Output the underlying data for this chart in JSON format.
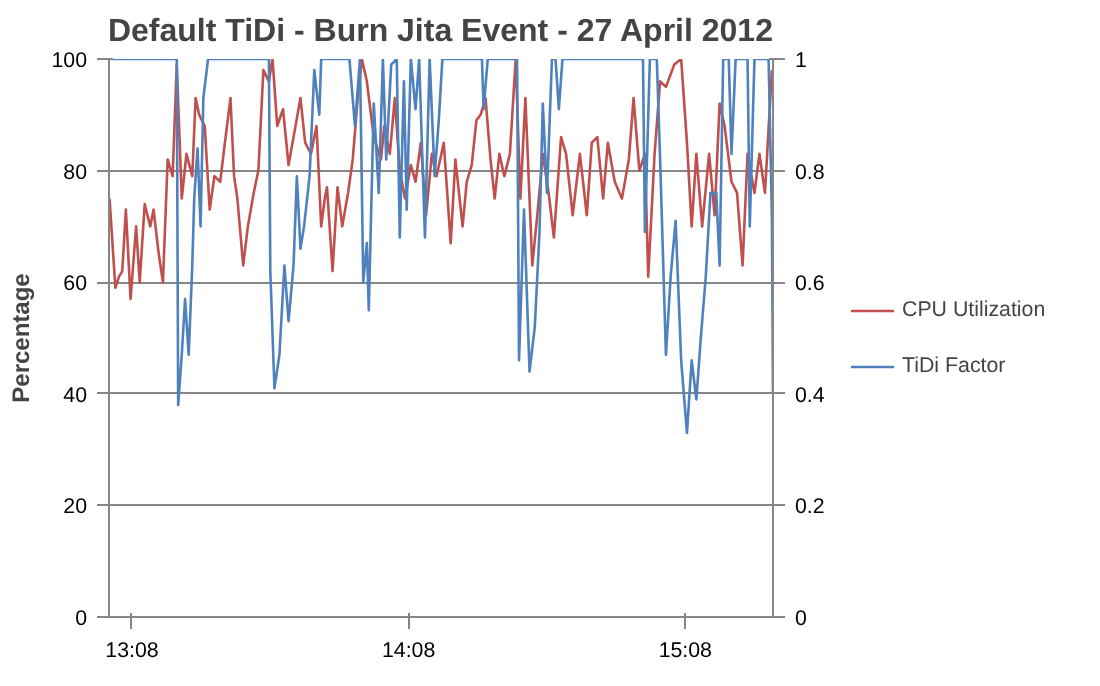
{
  "chart_data": {
    "type": "line",
    "title": "Default TiDi - Burn Jita Event - 27 April 2012",
    "ylabel": "Percentage",
    "xlim": [
      13.05,
      15.45
    ],
    "xticks": [
      {
        "value": 13.133,
        "label": "13:08"
      },
      {
        "value": 14.133,
        "label": "14:08"
      },
      {
        "value": 15.133,
        "label": "15:08"
      }
    ],
    "ylim": [
      0,
      100
    ],
    "yticks": [
      0,
      20,
      40,
      60,
      80,
      100
    ],
    "y2lim": [
      0,
      1
    ],
    "y2ticks": [
      0,
      0.2,
      0.4,
      0.6,
      0.8,
      1
    ],
    "grid": "y",
    "legend": "right",
    "line_style": "solid",
    "marker": "none",
    "series": [
      {
        "name": "CPU Utilization",
        "color": "#c0504d",
        "x": [
          13.052,
          13.073,
          13.086,
          13.098,
          13.111,
          13.128,
          13.148,
          13.161,
          13.179,
          13.199,
          13.211,
          13.23,
          13.245,
          13.262,
          13.28,
          13.295,
          13.313,
          13.33,
          13.351,
          13.363,
          13.376,
          13.396,
          13.414,
          13.431,
          13.452,
          13.464,
          13.489,
          13.502,
          13.514,
          13.535,
          13.552,
          13.573,
          13.59,
          13.608,
          13.628,
          13.641,
          13.658,
          13.679,
          13.699,
          13.717,
          13.742,
          13.759,
          13.78,
          13.8,
          13.817,
          13.83,
          13.838,
          13.858,
          13.876,
          13.893,
          13.914,
          13.931,
          13.949,
          13.964,
          13.982,
          14.007,
          14.033,
          14.045,
          14.065,
          14.083,
          14.101,
          14.12,
          14.141,
          14.158,
          14.177,
          14.196,
          14.217,
          14.234,
          14.26,
          14.285,
          14.302,
          14.328,
          14.343,
          14.361,
          14.378,
          14.393,
          14.411,
          14.429,
          14.444,
          14.461,
          14.479,
          14.499,
          14.52,
          14.537,
          14.555,
          14.58,
          14.6,
          14.618,
          14.639,
          14.658,
          14.684,
          14.702,
          14.726,
          14.752,
          14.777,
          14.795,
          14.815,
          14.836,
          14.853,
          14.878,
          14.904,
          14.929,
          14.946,
          14.967,
          14.987,
          14.999,
          15.022,
          15.042,
          15.063,
          15.093,
          15.118,
          15.139,
          15.156,
          15.173,
          15.194,
          15.219,
          15.239,
          15.257,
          15.275,
          15.3,
          15.32,
          15.34,
          15.358,
          15.383,
          15.401,
          15.421,
          15.446
        ],
        "values": [
          75,
          59,
          61,
          62,
          73,
          57,
          70,
          60,
          74,
          70,
          73,
          65,
          60,
          82,
          79,
          99,
          75,
          83,
          79,
          93,
          90,
          88,
          73,
          79,
          78,
          83,
          93,
          79,
          75,
          63,
          70,
          76,
          80,
          98,
          96,
          100,
          88,
          91,
          81,
          86,
          93,
          85,
          83,
          88,
          70,
          75,
          77,
          62,
          77,
          70,
          76,
          82,
          93,
          100,
          96,
          86,
          82,
          88,
          83,
          93,
          80,
          75,
          81,
          78,
          85,
          72,
          83,
          79,
          85,
          67,
          82,
          70,
          78,
          81,
          89,
          90,
          93,
          82,
          75,
          83,
          79,
          83,
          100,
          75,
          93,
          63,
          73,
          83,
          76,
          68,
          86,
          83,
          72,
          83,
          72,
          85,
          86,
          75,
          85,
          78,
          75,
          82,
          93,
          80,
          83,
          61,
          83,
          96,
          95,
          99,
          100,
          85,
          70,
          83,
          70,
          83,
          72,
          92,
          88,
          78,
          76,
          63,
          83,
          76,
          83,
          76,
          98
        ]
      },
      {
        "name": "TiDi Factor",
        "color": "#4f81bd",
        "axis": "y2",
        "x": [
          13.052,
          13.287,
          13.295,
          13.3,
          13.313,
          13.325,
          13.338,
          13.351,
          13.358,
          13.37,
          13.381,
          13.391,
          13.408,
          13.628,
          13.633,
          13.648,
          13.666,
          13.684,
          13.699,
          13.717,
          13.729,
          13.742,
          13.755,
          13.775,
          13.792,
          13.81,
          13.817,
          13.919,
          13.939,
          13.957,
          13.969,
          13.982,
          13.989,
          14.007,
          14.025,
          14.04,
          14.052,
          14.07,
          14.09,
          14.101,
          14.116,
          14.126,
          14.141,
          14.158,
          14.171,
          14.192,
          14.209,
          14.227,
          14.242,
          14.255,
          14.398,
          14.404,
          14.419,
          14.525,
          14.532,
          14.55,
          14.57,
          14.589,
          14.606,
          14.618,
          14.633,
          14.651,
          14.664,
          14.676,
          14.689,
          14.98,
          14.987,
          15.005,
          15.03,
          15.042,
          15.063,
          15.08,
          15.098,
          15.118,
          15.139,
          15.156,
          15.173,
          15.189,
          15.207,
          15.224,
          15.245,
          15.257,
          15.27,
          15.29,
          15.3,
          15.315,
          15.358,
          15.366,
          15.383,
          15.434,
          15.446,
          15.45
        ],
        "values": [
          1,
          1,
          1,
          0.38,
          0.47,
          0.57,
          0.47,
          0.63,
          0.75,
          0.84,
          0.7,
          0.93,
          1,
          1,
          0.62,
          0.41,
          0.47,
          0.63,
          0.53,
          0.63,
          0.79,
          0.66,
          0.7,
          0.79,
          0.98,
          0.9,
          1,
          1,
          0.88,
          1,
          0.6,
          0.67,
          0.55,
          0.92,
          0.76,
          1,
          0.82,
          0.99,
          1,
          0.68,
          0.96,
          0.73,
          1,
          0.91,
          1,
          0.68,
          1,
          0.79,
          0.89,
          1,
          1,
          0.91,
          1,
          1,
          0.46,
          0.73,
          0.44,
          0.52,
          0.69,
          0.92,
          0.76,
          1,
          1,
          0.91,
          1,
          1,
          0.69,
          1,
          1,
          0.82,
          0.47,
          0.61,
          0.71,
          0.46,
          0.33,
          0.46,
          0.39,
          0.5,
          0.61,
          0.76,
          0.76,
          0.63,
          1,
          1,
          0.83,
          1,
          1,
          0.7,
          1,
          1,
          0.72,
          0.4
        ]
      }
    ]
  }
}
